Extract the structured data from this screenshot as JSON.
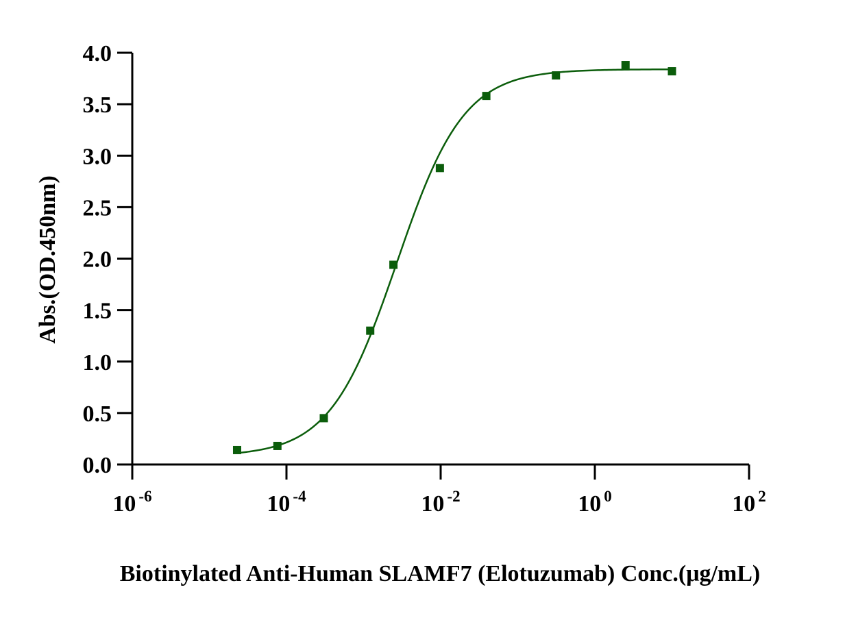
{
  "chart_data": {
    "type": "scatter",
    "xlabel": "Biotinylated Anti-Human SLAMF7 (Elotuzumab) Conc.(μg/mL)",
    "ylabel": "Abs.(OD.450nm)",
    "x_scale": "log",
    "xlim": [
      1e-06,
      100
    ],
    "ylim": [
      0.0,
      4.0
    ],
    "x_ticks": [
      {
        "base": "10",
        "exp": "-6"
      },
      {
        "base": "10",
        "exp": "-4"
      },
      {
        "base": "10",
        "exp": "-2"
      },
      {
        "base": "10",
        "exp": "0"
      },
      {
        "base": "10",
        "exp": "2"
      }
    ],
    "y_ticks": [
      "0.0",
      "0.5",
      "1.0",
      "1.5",
      "2.0",
      "2.5",
      "3.0",
      "3.5",
      "4.0"
    ],
    "series": [
      {
        "color": "#0b5d0b",
        "marker": "square",
        "fit": "4PL",
        "x": [
          2.29e-05,
          7.63e-05,
          0.000305,
          0.00122,
          0.00244,
          0.00977,
          0.0391,
          0.313,
          2.5,
          10
        ],
        "y": [
          0.14,
          0.18,
          0.45,
          1.3,
          1.94,
          2.88,
          3.58,
          3.78,
          3.88,
          3.82
        ],
        "fit_params": {
          "bottom": 0.08,
          "top": 3.84,
          "ec50": 0.0027,
          "hill": 1.0
        }
      }
    ],
    "grid": false,
    "legend": "none"
  }
}
